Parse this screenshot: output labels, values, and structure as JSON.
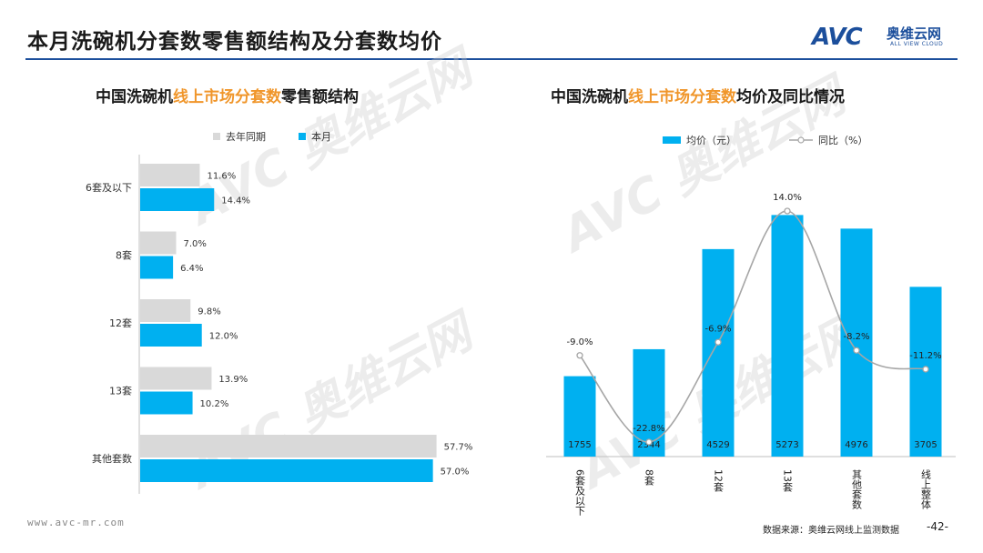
{
  "header": {
    "title": "本月洗碗机分套数零售额结构及分套数均价",
    "logo_text": "AVC",
    "logo_cn": "奥维云网",
    "logo_en": "ALL VIEW CLOUD"
  },
  "left_panel": {
    "title_part1": "中国洗碗机",
    "title_part2": "线上市场分套数",
    "title_part3": "零售额结构"
  },
  "right_panel": {
    "title_part1": "中国洗碗机",
    "title_part2": "线上市场分套数",
    "title_part3": "均价及同比情况"
  },
  "footer": {
    "url": "www.avc-mr.com",
    "source": "数据来源：奥维云网线上监测数据",
    "page": "-42-"
  },
  "colors": {
    "gray": "#d9d9d9",
    "blue": "#00b0f0",
    "orange": "#f0962b",
    "line": "#a6a6a6"
  },
  "chart_data": [
    {
      "type": "bar",
      "orientation": "horizontal",
      "title": "中国洗碗机线上市场分套数零售额结构",
      "categories": [
        "6套及以下",
        "8套",
        "12套",
        "13套",
        "其他套数"
      ],
      "series": [
        {
          "name": "去年同期",
          "values": [
            11.6,
            7.0,
            9.8,
            13.9,
            57.7
          ],
          "labels": [
            "11.6%",
            "7.0%",
            "9.8%",
            "13.9%",
            "57.7%"
          ]
        },
        {
          "name": "本月",
          "values": [
            14.4,
            6.4,
            12.0,
            10.2,
            57.0
          ],
          "labels": [
            "14.4%",
            "6.4%",
            "12.0%",
            "10.2%",
            "57.0%"
          ]
        }
      ],
      "xlim": [
        0,
        70
      ],
      "legend": "top"
    },
    {
      "type": "bar",
      "title": "中国洗碗机线上市场分套数均价及同比情况",
      "categories": [
        "6套及以下",
        "8套",
        "12套",
        "13套",
        "其他套数",
        "线上整体"
      ],
      "series": [
        {
          "name": "均价（元）",
          "values": [
            1755,
            2344,
            4529,
            5273,
            4976,
            3705
          ],
          "labels": [
            "1755",
            "2344",
            "4529",
            "5273",
            "4976",
            "3705"
          ]
        },
        {
          "name": "同比（%）",
          "type": "line",
          "values": [
            -9.0,
            -22.8,
            -6.9,
            14.0,
            -8.2,
            -11.2
          ],
          "labels": [
            "-9.0%",
            "-22.8%",
            "-6.9%",
            "14.0%",
            "-8.2%",
            "-11.2%"
          ]
        }
      ],
      "legend": "top"
    }
  ]
}
